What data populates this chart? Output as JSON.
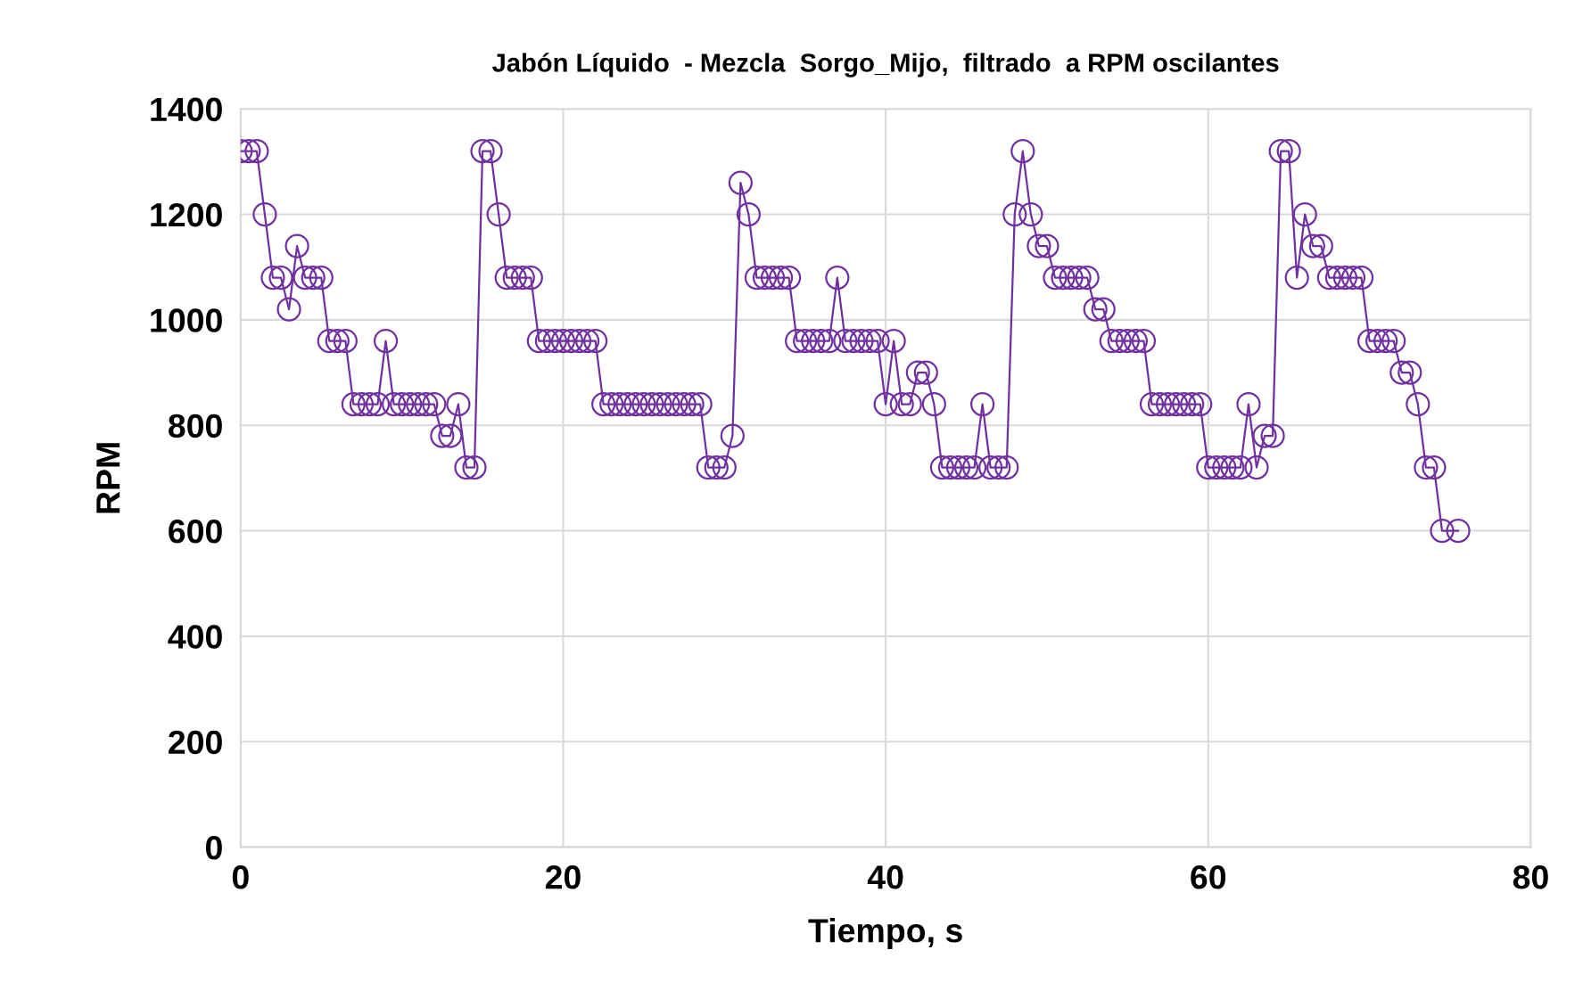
{
  "chart_data": {
    "type": "line",
    "title": "Jabón Líquido  - Mezcla  Sorgo_Mijo,  filtrado  a RPM oscilantes",
    "xlabel": "Tiempo, s",
    "ylabel": "RPM",
    "x": [
      0,
      0.5,
      1,
      1.5,
      2,
      2.5,
      3,
      3.5,
      4,
      4.5,
      5,
      5.5,
      6,
      6.5,
      7,
      7.5,
      8,
      8.5,
      9,
      9.5,
      10,
      10.5,
      11,
      11.5,
      12,
      12.5,
      13,
      13.5,
      14,
      14.5,
      15,
      15.5,
      16,
      16.5,
      17,
      17.5,
      18,
      18.5,
      19,
      19.5,
      20,
      20.5,
      21,
      21.5,
      22,
      22.5,
      23,
      23.5,
      24,
      24.5,
      25,
      25.5,
      26,
      26.5,
      27,
      27.5,
      28,
      28.5,
      29,
      29.5,
      30,
      30.5,
      31,
      31.5,
      32,
      32.5,
      33,
      33.5,
      34,
      34.5,
      35,
      35.5,
      36,
      36.5,
      37,
      37.5,
      38,
      38.5,
      39,
      39.5,
      40,
      40.5,
      41,
      41.5,
      42,
      42.5,
      43,
      43.5,
      44,
      44.5,
      45,
      45.5,
      46,
      46.5,
      47,
      47.5,
      48,
      48.5,
      49,
      49.5,
      50,
      50.5,
      51,
      51.5,
      52,
      52.5,
      53,
      53.5,
      54,
      54.5,
      55,
      55.5,
      56,
      56.5,
      57,
      57.5,
      58,
      58.5,
      59,
      59.5,
      60,
      60.5,
      61,
      61.5,
      62,
      62.5,
      63,
      63.5,
      64,
      64.5,
      65,
      65.5,
      66,
      66.5,
      67,
      67.5,
      68,
      68.5,
      69,
      69.5,
      70,
      70.5,
      71,
      71.5,
      72,
      72.5,
      73,
      73.5,
      74,
      74.5,
      75.5
    ],
    "series": [
      {
        "color": "#7030a0",
        "values": [
          1320,
          1320,
          1320,
          1200,
          1080,
          1080,
          1020,
          1140,
          1080,
          1080,
          1080,
          960,
          960,
          960,
          840,
          840,
          840,
          840,
          960,
          840,
          840,
          840,
          840,
          840,
          840,
          780,
          780,
          840,
          720,
          720,
          1320,
          1320,
          1200,
          1080,
          1080,
          1080,
          1080,
          960,
          960,
          960,
          960,
          960,
          960,
          960,
          960,
          840,
          840,
          840,
          840,
          840,
          840,
          840,
          840,
          840,
          840,
          840,
          840,
          840,
          720,
          720,
          720,
          780,
          1260,
          1200,
          1080,
          1080,
          1080,
          1080,
          1080,
          960,
          960,
          960,
          960,
          960,
          1080,
          960,
          960,
          960,
          960,
          960,
          840,
          960,
          840,
          840,
          900,
          900,
          840,
          720,
          720,
          720,
          720,
          720,
          840,
          720,
          720,
          720,
          1200,
          1320,
          1200,
          1140,
          1140,
          1080,
          1080,
          1080,
          1080,
          1080,
          1020,
          1020,
          960,
          960,
          960,
          960,
          960,
          840,
          840,
          840,
          840,
          840,
          840,
          840,
          720,
          720,
          720,
          720,
          720,
          840,
          720,
          780,
          780,
          1320,
          1320,
          1080,
          1200,
          1140,
          1140,
          1080,
          1080,
          1080,
          1080,
          1080,
          960,
          960,
          960,
          960,
          900,
          900,
          840,
          720,
          720,
          600,
          600
        ]
      }
    ],
    "xlim": [
      0,
      80
    ],
    "xticks": [
      0,
      20,
      40,
      60,
      80
    ],
    "ylim": [
      0,
      1400
    ],
    "yticks": [
      0,
      200,
      400,
      600,
      800,
      1000,
      1200,
      1400
    ],
    "grid": true,
    "marker": "circle",
    "line_style": "solid"
  }
}
